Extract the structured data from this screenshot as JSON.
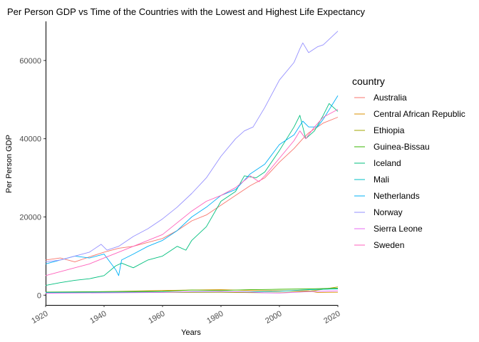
{
  "chart_data": {
    "type": "line",
    "title": "Per Person GDP vs Time of the Countries with the Lowest and Highest Life Expectancy",
    "xlabel": "Years",
    "ylabel": "Per Person GDP",
    "xlim": [
      1920,
      2020
    ],
    "ylim": [
      -2500,
      70000
    ],
    "x_ticks": [
      1920,
      1940,
      1960,
      1980,
      2000,
      2020
    ],
    "y_ticks": [
      0,
      20000,
      40000,
      60000
    ],
    "grid": false,
    "legend_title": "country",
    "legend_position": "right",
    "series": [
      {
        "name": "Australia",
        "color": "#F8766D",
        "points": [
          [
            1920,
            9000
          ],
          [
            1925,
            9500
          ],
          [
            1930,
            8500
          ],
          [
            1935,
            9800
          ],
          [
            1940,
            11000
          ],
          [
            1945,
            12000
          ],
          [
            1950,
            12500
          ],
          [
            1955,
            13500
          ],
          [
            1960,
            14500
          ],
          [
            1965,
            16500
          ],
          [
            1970,
            19000
          ],
          [
            1975,
            20500
          ],
          [
            1980,
            23000
          ],
          [
            1985,
            25500
          ],
          [
            1990,
            28000
          ],
          [
            1995,
            30000
          ],
          [
            2000,
            34000
          ],
          [
            2005,
            37500
          ],
          [
            2008,
            40000
          ],
          [
            2010,
            41500
          ],
          [
            2015,
            44000
          ],
          [
            2020,
            45500
          ]
        ]
      },
      {
        "name": "Central African Republic",
        "color": "#D89000",
        "points": [
          [
            1920,
            700
          ],
          [
            1940,
            900
          ],
          [
            1960,
            1200
          ],
          [
            1970,
            1300
          ],
          [
            1980,
            1400
          ],
          [
            1990,
            1200
          ],
          [
            2000,
            1100
          ],
          [
            2010,
            1100
          ],
          [
            2013,
            700
          ],
          [
            2020,
            750
          ]
        ]
      },
      {
        "name": "Ethiopia",
        "color": "#A3A500",
        "points": [
          [
            1920,
            600
          ],
          [
            1940,
            650
          ],
          [
            1960,
            700
          ],
          [
            1980,
            750
          ],
          [
            1990,
            650
          ],
          [
            2000,
            600
          ],
          [
            2010,
            1000
          ],
          [
            2015,
            1500
          ],
          [
            2020,
            2100
          ]
        ]
      },
      {
        "name": "Guinea-Bissau",
        "color": "#39B600",
        "points": [
          [
            1920,
            800
          ],
          [
            1940,
            900
          ],
          [
            1960,
            1000
          ],
          [
            1970,
            1300
          ],
          [
            1980,
            1200
          ],
          [
            1990,
            1400
          ],
          [
            2000,
            1500
          ],
          [
            2010,
            1600
          ],
          [
            2020,
            1800
          ]
        ]
      },
      {
        "name": "Iceland",
        "color": "#00BF7D",
        "points": [
          [
            1920,
            2500
          ],
          [
            1925,
            3200
          ],
          [
            1930,
            3800
          ],
          [
            1935,
            4200
          ],
          [
            1940,
            5000
          ],
          [
            1944,
            7500
          ],
          [
            1946,
            8200
          ],
          [
            1950,
            7000
          ],
          [
            1955,
            9000
          ],
          [
            1960,
            10000
          ],
          [
            1965,
            12500
          ],
          [
            1968,
            11500
          ],
          [
            1970,
            14000
          ],
          [
            1975,
            17500
          ],
          [
            1980,
            24000
          ],
          [
            1985,
            26500
          ],
          [
            1988,
            30500
          ],
          [
            1992,
            30000
          ],
          [
            1995,
            31500
          ],
          [
            2000,
            37000
          ],
          [
            2005,
            43000
          ],
          [
            2007,
            46000
          ],
          [
            2009,
            40000
          ],
          [
            2012,
            42000
          ],
          [
            2015,
            46000
          ],
          [
            2017,
            49000
          ],
          [
            2020,
            47000
          ]
        ]
      },
      {
        "name": "Mali",
        "color": "#00BFC4",
        "points": [
          [
            1920,
            700
          ],
          [
            1940,
            750
          ],
          [
            1960,
            800
          ],
          [
            1980,
            900
          ],
          [
            1990,
            850
          ],
          [
            2000,
            1000
          ],
          [
            2010,
            1400
          ],
          [
            2020,
            1600
          ]
        ]
      },
      {
        "name": "Netherlands",
        "color": "#00B0F6",
        "points": [
          [
            1920,
            8000
          ],
          [
            1925,
            9000
          ],
          [
            1930,
            10000
          ],
          [
            1935,
            9500
          ],
          [
            1940,
            10500
          ],
          [
            1944,
            6500
          ],
          [
            1945,
            5000
          ],
          [
            1946,
            9000
          ],
          [
            1950,
            10500
          ],
          [
            1955,
            12500
          ],
          [
            1960,
            14000
          ],
          [
            1965,
            16500
          ],
          [
            1970,
            20000
          ],
          [
            1975,
            22500
          ],
          [
            1980,
            25500
          ],
          [
            1985,
            27000
          ],
          [
            1990,
            31000
          ],
          [
            1995,
            33500
          ],
          [
            2000,
            38500
          ],
          [
            2005,
            41000
          ],
          [
            2008,
            44500
          ],
          [
            2010,
            43000
          ],
          [
            2013,
            43000
          ],
          [
            2015,
            45000
          ],
          [
            2020,
            51000
          ]
        ]
      },
      {
        "name": "Norway",
        "color": "#9590FF",
        "points": [
          [
            1920,
            8500
          ],
          [
            1925,
            9000
          ],
          [
            1930,
            10000
          ],
          [
            1935,
            11000
          ],
          [
            1939,
            13000
          ],
          [
            1941,
            11500
          ],
          [
            1945,
            12500
          ],
          [
            1950,
            15000
          ],
          [
            1955,
            17000
          ],
          [
            1960,
            19500
          ],
          [
            1965,
            22500
          ],
          [
            1970,
            26000
          ],
          [
            1975,
            30000
          ],
          [
            1980,
            35500
          ],
          [
            1985,
            40000
          ],
          [
            1988,
            42000
          ],
          [
            1991,
            43000
          ],
          [
            1995,
            48000
          ],
          [
            2000,
            55000
          ],
          [
            2005,
            59500
          ],
          [
            2007,
            63000
          ],
          [
            2008,
            64500
          ],
          [
            2010,
            62000
          ],
          [
            2013,
            63500
          ],
          [
            2015,
            64000
          ],
          [
            2020,
            67500
          ]
        ]
      },
      {
        "name": "Sierra Leone",
        "color": "#E76BF3",
        "points": [
          [
            1920,
            500
          ],
          [
            1940,
            600
          ],
          [
            1960,
            700
          ],
          [
            1970,
            900
          ],
          [
            1980,
            950
          ],
          [
            1990,
            800
          ],
          [
            1995,
            600
          ],
          [
            2000,
            550
          ],
          [
            2010,
            900
          ],
          [
            2020,
            1100
          ]
        ]
      },
      {
        "name": "Sweden",
        "color": "#FF62BC",
        "points": [
          [
            1920,
            5000
          ],
          [
            1925,
            6000
          ],
          [
            1930,
            7000
          ],
          [
            1935,
            8000
          ],
          [
            1940,
            9500
          ],
          [
            1945,
            11000
          ],
          [
            1950,
            12500
          ],
          [
            1955,
            14000
          ],
          [
            1960,
            15500
          ],
          [
            1965,
            18500
          ],
          [
            1970,
            21500
          ],
          [
            1975,
            24000
          ],
          [
            1980,
            25500
          ],
          [
            1985,
            27500
          ],
          [
            1990,
            30500
          ],
          [
            1993,
            29000
          ],
          [
            1995,
            30500
          ],
          [
            2000,
            35000
          ],
          [
            2005,
            39500
          ],
          [
            2007,
            42000
          ],
          [
            2009,
            40000
          ],
          [
            2012,
            43000
          ],
          [
            2015,
            45500
          ],
          [
            2020,
            47500
          ]
        ]
      }
    ]
  }
}
